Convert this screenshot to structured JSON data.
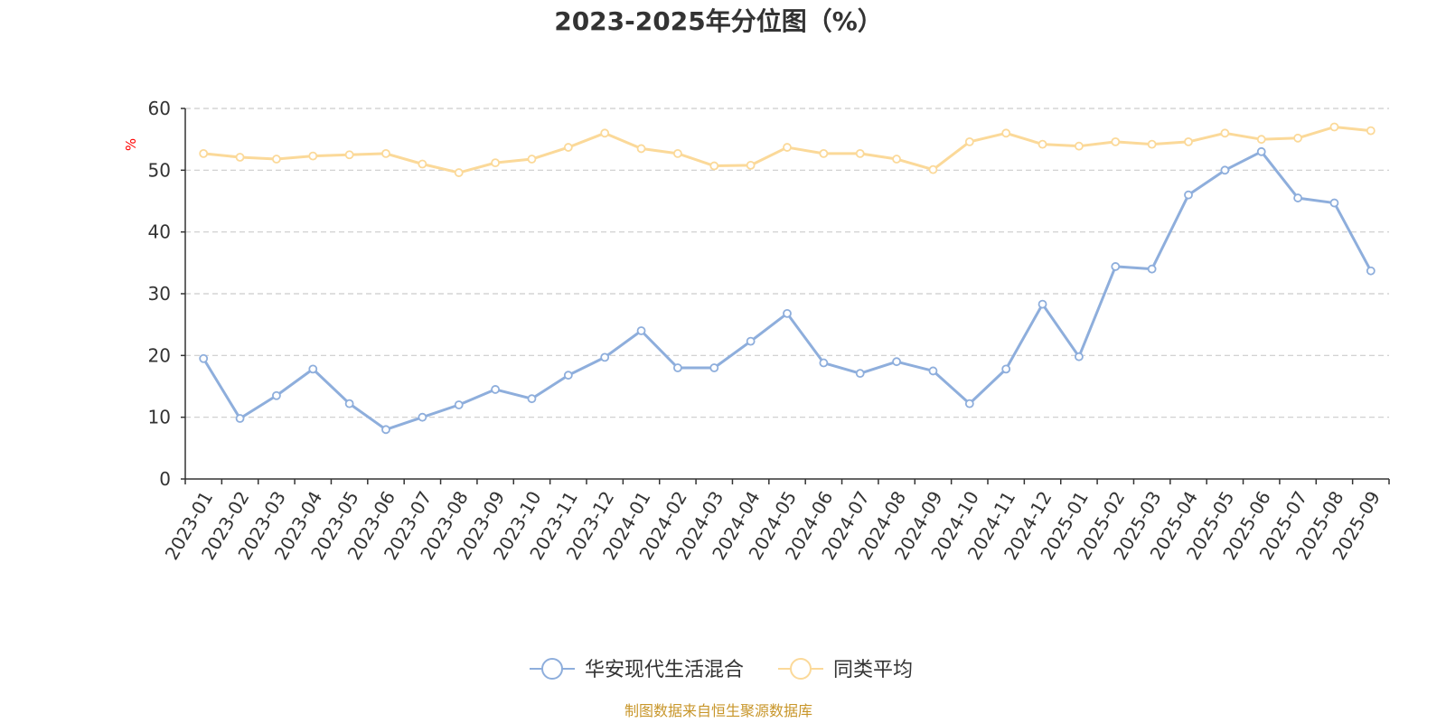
{
  "chart_data": {
    "type": "line",
    "title": "2023-2025年分位图（%）",
    "ylabel": "%",
    "ylim": [
      0,
      60
    ],
    "yticks": [
      "0",
      "10",
      "20",
      "30",
      "40",
      "50",
      "60"
    ],
    "grid": true,
    "legend_position": "bottom-center",
    "x": [
      "2023-01",
      "2023-02",
      "2023-03",
      "2023-04",
      "2023-05",
      "2023-06",
      "2023-07",
      "2023-08",
      "2023-09",
      "2023-10",
      "2023-11",
      "2023-12",
      "2024-01",
      "2024-02",
      "2024-03",
      "2024-04",
      "2024-05",
      "2024-06",
      "2024-07",
      "2024-08",
      "2024-09",
      "2024-10",
      "2024-11",
      "2024-12",
      "2025-01",
      "2025-02",
      "2025-03",
      "2025-04",
      "2025-05",
      "2025-06",
      "2025-07",
      "2025-08",
      "2025-09"
    ],
    "series": [
      {
        "name": "华安现代生活混合",
        "color": "#8eaedc",
        "values": [
          19.5,
          9.8,
          13.5,
          17.8,
          12.2,
          8.0,
          10.0,
          12.0,
          14.5,
          13.0,
          16.8,
          19.7,
          24.0,
          18.0,
          18.0,
          22.3,
          26.8,
          18.8,
          17.1,
          19.0,
          17.5,
          12.2,
          17.8,
          28.3,
          19.8,
          34.4,
          34.0,
          46.0,
          50.0,
          53.0,
          45.5,
          44.7,
          33.7
        ]
      },
      {
        "name": "同类平均",
        "color": "#fbd999",
        "values": [
          52.7,
          52.1,
          51.8,
          52.3,
          52.5,
          52.7,
          51.0,
          49.6,
          51.2,
          51.8,
          53.7,
          56.0,
          53.5,
          52.7,
          50.7,
          50.8,
          53.7,
          52.7,
          52.7,
          51.8,
          50.1,
          54.6,
          56.0,
          54.2,
          53.9,
          54.6,
          54.2,
          54.6,
          56.0,
          55.0,
          55.2,
          57.0,
          56.4
        ]
      }
    ]
  },
  "source_text": "制图数据来自恒生聚源数据库",
  "colors": {
    "text": "#333333",
    "grid": "#cccccc",
    "axis": "#333333",
    "unit": "#ff0000",
    "source": "#c8962a"
  }
}
